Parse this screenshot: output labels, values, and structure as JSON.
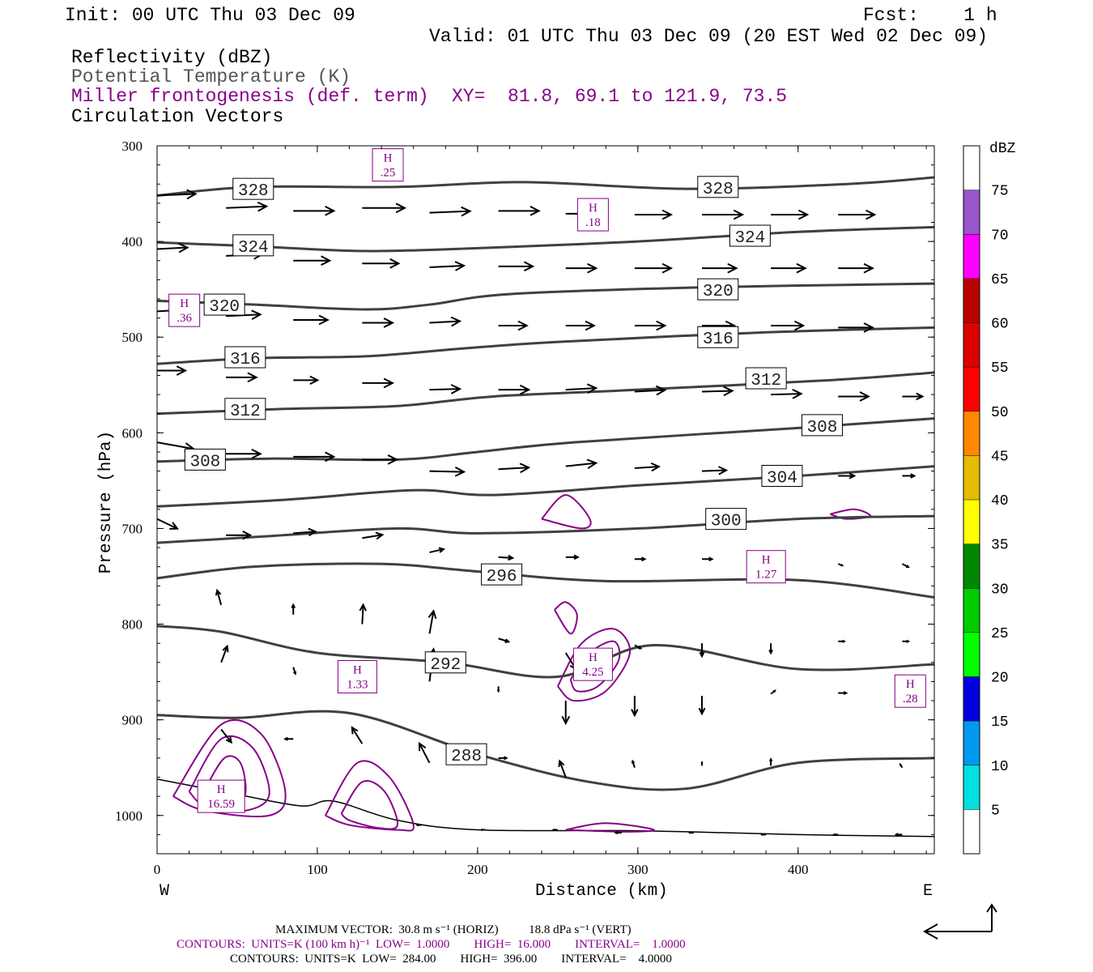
{
  "header": {
    "init": "Init: 00 UTC Thu 03 Dec 09",
    "fcst": "Fcst:    1 h",
    "valid": "Valid: 01 UTC Thu 03 Dec 09 (20 EST Wed 02 Dec 09)"
  },
  "fields": {
    "reflectivity": "Reflectivity (dBZ)",
    "theta": "Potential Temperature (K)",
    "miller": "Miller frontogenesis (def. term)",
    "xy": "XY=  81.8, 69.1 to 121.9, 73.5",
    "vectors": "Circulation Vectors"
  },
  "colors": {
    "theta_contour": "#404040",
    "frontogenesis": "#880088",
    "vector": "#000000"
  },
  "chart_data": {
    "type": "line",
    "xlabel": "Distance (km)",
    "ylabel": "Pressure (hPa)",
    "xlim": [
      0,
      485
    ],
    "ylim": [
      1040,
      300
    ],
    "x_ticks": [
      "0",
      "100",
      "200",
      "300",
      "400"
    ],
    "y_ticks": [
      "300",
      "400",
      "500",
      "600",
      "700",
      "800",
      "900",
      "1000"
    ],
    "x_left_label": "W",
    "x_right_label": "E",
    "colorbar": {
      "unit": "dBZ",
      "levels": [
        "5",
        "10",
        "15",
        "20",
        "25",
        "30",
        "35",
        "40",
        "45",
        "50",
        "55",
        "60",
        "65",
        "70",
        "75"
      ],
      "colors": [
        "#ffffff",
        "#00e0e0",
        "#0099ee",
        "#0000dd",
        "#00ff00",
        "#00cc00",
        "#008800",
        "#ffff00",
        "#e6bb00",
        "#ff8800",
        "#ff0000",
        "#dd0000",
        "#bb0000",
        "#ff00ff",
        "#9955cc",
        "#ffffff"
      ]
    },
    "series": [
      {
        "name": "328",
        "x": [
          0,
          60,
          150,
          230,
          330,
          430,
          485
        ],
        "y": [
          352,
          343,
          343,
          338,
          345,
          340,
          333
        ]
      },
      {
        "name": "324",
        "x": [
          0,
          60,
          130,
          200,
          300,
          400,
          485
        ],
        "y": [
          401,
          405,
          410,
          407,
          400,
          390,
          385
        ]
      },
      {
        "name": "320",
        "x": [
          0,
          60,
          130,
          170,
          220,
          340,
          485
        ],
        "y": [
          462,
          466,
          471,
          466,
          455,
          448,
          444
        ]
      },
      {
        "name": "316",
        "x": [
          0,
          60,
          130,
          190,
          250,
          380,
          485
        ],
        "y": [
          528,
          522,
          520,
          512,
          505,
          495,
          490
        ]
      },
      {
        "name": "312",
        "x": [
          0,
          80,
          150,
          210,
          300,
          420,
          485
        ],
        "y": [
          580,
          575,
          572,
          562,
          555,
          545,
          537
        ]
      },
      {
        "name": "308",
        "x": [
          0,
          70,
          150,
          200,
          260,
          400,
          485
        ],
        "y": [
          630,
          627,
          628,
          620,
          610,
          595,
          585
        ]
      },
      {
        "name": "304",
        "x": [
          0,
          80,
          160,
          210,
          300,
          400,
          485
        ],
        "y": [
          677,
          670,
          660,
          665,
          655,
          645,
          635
        ]
      },
      {
        "name": "300",
        "x": [
          0,
          70,
          150,
          200,
          300,
          400,
          485
        ],
        "y": [
          715,
          708,
          700,
          705,
          700,
          690,
          687
        ]
      },
      {
        "name": "296",
        "x": [
          0,
          60,
          140,
          200,
          280,
          400,
          485
        ],
        "y": [
          752,
          740,
          737,
          745,
          755,
          754,
          772
        ]
      },
      {
        "name": "292",
        "x": [
          0,
          40,
          100,
          180,
          250,
          310,
          400,
          485
        ],
        "y": [
          802,
          808,
          830,
          840,
          855,
          822,
          847,
          842
        ]
      },
      {
        "name": "288",
        "x": [
          0,
          50,
          120,
          200,
          270,
          330,
          400,
          485
        ],
        "y": [
          895,
          898,
          893,
          936,
          965,
          972,
          945,
          940
        ]
      }
    ],
    "contour_labels": [
      {
        "text": "328",
        "x": 60,
        "y": 345
      },
      {
        "text": "328",
        "x": 350,
        "y": 343
      },
      {
        "text": "324",
        "x": 60,
        "y": 404
      },
      {
        "text": "324",
        "x": 370,
        "y": 394
      },
      {
        "text": "320",
        "x": 42,
        "y": 466
      },
      {
        "text": "320",
        "x": 350,
        "y": 450
      },
      {
        "text": "316",
        "x": 55,
        "y": 521
      },
      {
        "text": "316",
        "x": 350,
        "y": 500
      },
      {
        "text": "312",
        "x": 55,
        "y": 575
      },
      {
        "text": "312",
        "x": 380,
        "y": 543
      },
      {
        "text": "308",
        "x": 30,
        "y": 628
      },
      {
        "text": "308",
        "x": 415,
        "y": 592
      },
      {
        "text": "304",
        "x": 390,
        "y": 645
      },
      {
        "text": "300",
        "x": 355,
        "y": 690
      },
      {
        "text": "296",
        "x": 215,
        "y": 748
      },
      {
        "text": "292",
        "x": 180,
        "y": 840
      },
      {
        "text": "288",
        "x": 193,
        "y": 936
      }
    ],
    "maxima": [
      {
        "label": "H",
        "value": ".25",
        "x": 144,
        "y": 320
      },
      {
        "label": "H",
        "value": ".18",
        "x": 272,
        "y": 372
      },
      {
        "label": "H",
        "value": ".36",
        "x": 17,
        "y": 472
      },
      {
        "label": "H",
        "value": "1.27",
        "x": 380,
        "y": 740
      },
      {
        "label": "H",
        "value": "1.33",
        "x": 125,
        "y": 855
      },
      {
        "label": "H",
        "value": "4.25",
        "x": 272,
        "y": 842
      },
      {
        "label": "H",
        "value": ".28",
        "x": 470,
        "y": 870
      },
      {
        "label": "H",
        "value": "16.59",
        "x": 40,
        "y": 980
      }
    ],
    "frontogenesis_contours": [
      {
        "x": [
          240,
          255,
          270,
          265,
          240
        ],
        "y": [
          690,
          665,
          690,
          700,
          690
        ]
      },
      {
        "x": [
          420,
          435,
          445,
          430,
          420
        ],
        "y": [
          685,
          680,
          687,
          690,
          685
        ]
      },
      {
        "x": [
          250,
          265,
          285,
          295,
          280,
          260,
          250
        ],
        "y": [
          865,
          820,
          805,
          830,
          870,
          880,
          865
        ]
      },
      {
        "x": [
          258,
          270,
          285,
          288,
          275,
          262,
          258
        ],
        "y": [
          858,
          830,
          818,
          838,
          865,
          870,
          858
        ]
      },
      {
        "x": [
          248,
          255,
          262,
          258,
          248
        ],
        "y": [
          785,
          777,
          790,
          810,
          785
        ]
      },
      {
        "x": [
          10,
          40,
          65,
          80,
          70,
          30,
          10
        ],
        "y": [
          980,
          905,
          915,
          975,
          1000,
          995,
          980
        ]
      },
      {
        "x": [
          20,
          40,
          60,
          70,
          55,
          30,
          20
        ],
        "y": [
          975,
          920,
          930,
          978,
          995,
          990,
          975
        ]
      },
      {
        "x": [
          30,
          42,
          52,
          55,
          45,
          35,
          30
        ],
        "y": [
          972,
          940,
          945,
          978,
          990,
          985,
          972
        ]
      },
      {
        "x": [
          105,
          125,
          145,
          160,
          150,
          120,
          105
        ],
        "y": [
          1000,
          945,
          960,
          1010,
          1015,
          1010,
          1000
        ]
      },
      {
        "x": [
          115,
          128,
          142,
          150,
          138,
          120,
          115
        ],
        "y": [
          998,
          965,
          975,
          1010,
          1013,
          1005,
          998
        ]
      },
      {
        "x": [
          255,
          280,
          310,
          290,
          255
        ],
        "y": [
          1015,
          1008,
          1015,
          1017,
          1015
        ]
      }
    ],
    "terrain": {
      "x": [
        0,
        50,
        90,
        110,
        150,
        200,
        300,
        400,
        485
      ],
      "y": [
        962,
        978,
        990,
        985,
        1005,
        1015,
        1016,
        1020,
        1022
      ]
    },
    "vectors": [
      {
        "x": 0,
        "y": 352,
        "u": 38,
        "w": 0.1
      },
      {
        "x": 43,
        "y": 365,
        "u": 40,
        "w": 0.1
      },
      {
        "x": 85,
        "y": 368,
        "u": 40,
        "w": 0
      },
      {
        "x": 128,
        "y": 365,
        "u": 42,
        "w": 0
      },
      {
        "x": 170,
        "y": 370,
        "u": 40,
        "w": 0.1
      },
      {
        "x": 213,
        "y": 368,
        "u": 40,
        "w": 0
      },
      {
        "x": 255,
        "y": 371,
        "u": 40,
        "w": 0
      },
      {
        "x": 298,
        "y": 372,
        "u": 36,
        "w": 0
      },
      {
        "x": 340,
        "y": 372,
        "u": 40,
        "w": 0
      },
      {
        "x": 383,
        "y": 372,
        "u": 36,
        "w": 0
      },
      {
        "x": 425,
        "y": 372,
        "u": 36,
        "w": 0
      },
      {
        "x": 0,
        "y": 408,
        "u": 30,
        "w": 0.1
      },
      {
        "x": 43,
        "y": 415,
        "u": 36,
        "w": 0.1
      },
      {
        "x": 85,
        "y": 420,
        "u": 36,
        "w": 0
      },
      {
        "x": 128,
        "y": 423,
        "u": 36,
        "w": 0
      },
      {
        "x": 170,
        "y": 427,
        "u": 34,
        "w": 0.1
      },
      {
        "x": 213,
        "y": 426,
        "u": 34,
        "w": 0
      },
      {
        "x": 255,
        "y": 428,
        "u": 30,
        "w": 0
      },
      {
        "x": 298,
        "y": 428,
        "u": 36,
        "w": 0
      },
      {
        "x": 340,
        "y": 428,
        "u": 34,
        "w": 0
      },
      {
        "x": 383,
        "y": 428,
        "u": 34,
        "w": 0
      },
      {
        "x": 425,
        "y": 428,
        "u": 34,
        "w": 0
      },
      {
        "x": 0,
        "y": 473,
        "u": 28,
        "w": 0.1
      },
      {
        "x": 43,
        "y": 478,
        "u": 34,
        "w": 0.1
      },
      {
        "x": 85,
        "y": 482,
        "u": 34,
        "w": 0
      },
      {
        "x": 128,
        "y": 485,
        "u": 30,
        "w": 0
      },
      {
        "x": 170,
        "y": 485,
        "u": 30,
        "w": 0.1
      },
      {
        "x": 213,
        "y": 488,
        "u": 28,
        "w": 0
      },
      {
        "x": 255,
        "y": 488,
        "u": 28,
        "w": 0
      },
      {
        "x": 298,
        "y": 488,
        "u": 30,
        "w": 0
      },
      {
        "x": 340,
        "y": 488,
        "u": 32,
        "w": 0
      },
      {
        "x": 383,
        "y": 488,
        "u": 32,
        "w": 0
      },
      {
        "x": 425,
        "y": 490,
        "u": 34,
        "w": 0
      },
      {
        "x": 0,
        "y": 535,
        "u": 28,
        "w": 0
      },
      {
        "x": 43,
        "y": 542,
        "u": 30,
        "w": 0
      },
      {
        "x": 85,
        "y": 545,
        "u": 24,
        "w": 0
      },
      {
        "x": 128,
        "y": 548,
        "u": 30,
        "w": 0
      },
      {
        "x": 170,
        "y": 555,
        "u": 30,
        "w": 0.05
      },
      {
        "x": 213,
        "y": 555,
        "u": 30,
        "w": 0
      },
      {
        "x": 255,
        "y": 555,
        "u": 30,
        "w": 0.1
      },
      {
        "x": 298,
        "y": 557,
        "u": 30,
        "w": 0.1
      },
      {
        "x": 340,
        "y": 557,
        "u": 30,
        "w": 0.05
      },
      {
        "x": 383,
        "y": 560,
        "u": 30,
        "w": 0.05
      },
      {
        "x": 425,
        "y": 562,
        "u": 30,
        "w": 0
      },
      {
        "x": 465,
        "y": 562,
        "u": 20,
        "w": 0
      },
      {
        "x": 0,
        "y": 610,
        "u": 36,
        "w": -0.4
      },
      {
        "x": 43,
        "y": 622,
        "u": 34,
        "w": 0
      },
      {
        "x": 85,
        "y": 625,
        "u": 40,
        "w": 0
      },
      {
        "x": 128,
        "y": 628,
        "u": 34,
        "w": 0
      },
      {
        "x": 170,
        "y": 640,
        "u": 34,
        "w": -0.05
      },
      {
        "x": 213,
        "y": 638,
        "u": 30,
        "w": 0.1
      },
      {
        "x": 255,
        "y": 635,
        "u": 30,
        "w": 0.2
      },
      {
        "x": 298,
        "y": 637,
        "u": 24,
        "w": 0.1
      },
      {
        "x": 340,
        "y": 640,
        "u": 24,
        "w": 0.05
      },
      {
        "x": 383,
        "y": 643,
        "u": 24,
        "w": 0
      },
      {
        "x": 425,
        "y": 645,
        "u": 16,
        "w": 0
      },
      {
        "x": 465,
        "y": 645,
        "u": 12,
        "w": 0
      },
      {
        "x": 0,
        "y": 690,
        "u": 20,
        "w": -0.6
      },
      {
        "x": 43,
        "y": 707,
        "u": 24,
        "w": 0
      },
      {
        "x": 85,
        "y": 705,
        "u": 22,
        "w": 0.1
      },
      {
        "x": 128,
        "y": 710,
        "u": 20,
        "w": 0.2
      },
      {
        "x": 170,
        "y": 725,
        "u": 14,
        "w": 0.2
      },
      {
        "x": 213,
        "y": 730,
        "u": 14,
        "w": -0.05
      },
      {
        "x": 255,
        "y": 730,
        "u": 12,
        "w": 0
      },
      {
        "x": 298,
        "y": 732,
        "u": 10,
        "w": 0
      },
      {
        "x": 340,
        "y": 732,
        "u": 10,
        "w": 0
      },
      {
        "x": 383,
        "y": 735,
        "u": 8,
        "w": 0
      },
      {
        "x": 425,
        "y": 737,
        "u": 4,
        "w": -0.1
      },
      {
        "x": 465,
        "y": 737,
        "u": 6,
        "w": -0.2
      },
      {
        "x": 40,
        "y": 780,
        "u": -4,
        "w": 0.9
      },
      {
        "x": 85,
        "y": 790,
        "u": 0,
        "w": 0.6
      },
      {
        "x": 128,
        "y": 800,
        "u": 1,
        "w": 1.2
      },
      {
        "x": 170,
        "y": 810,
        "u": 4,
        "w": 1.4
      },
      {
        "x": 213,
        "y": 815,
        "u": 10,
        "w": -0.2
      },
      {
        "x": 255,
        "y": 830,
        "u": 10,
        "w": -1.0
      },
      {
        "x": 298,
        "y": 822,
        "u": 6,
        "w": -0.2
      },
      {
        "x": 340,
        "y": 820,
        "u": 0,
        "w": -0.8
      },
      {
        "x": 383,
        "y": 820,
        "u": 0,
        "w": -0.6
      },
      {
        "x": 425,
        "y": 818,
        "u": 6,
        "w": 0
      },
      {
        "x": 465,
        "y": 818,
        "u": 6,
        "w": 0
      },
      {
        "x": 40,
        "y": 840,
        "u": 6,
        "w": 1.0
      },
      {
        "x": 85,
        "y": 845,
        "u": 2,
        "w": -0.4
      },
      {
        "x": 170,
        "y": 860,
        "u": 4,
        "w": 2.0
      },
      {
        "x": 213,
        "y": 865,
        "u": 0,
        "w": -0.3
      },
      {
        "x": 255,
        "y": 880,
        "u": 0,
        "w": -1.4
      },
      {
        "x": 298,
        "y": 875,
        "u": 0,
        "w": -1.2
      },
      {
        "x": 340,
        "y": 875,
        "u": 0,
        "w": -1.1
      },
      {
        "x": 383,
        "y": 873,
        "u": 4,
        "w": 0.2
      },
      {
        "x": 425,
        "y": 872,
        "u": 8,
        "w": 0
      },
      {
        "x": 465,
        "y": 872,
        "u": 10,
        "w": 0
      },
      {
        "x": 40,
        "y": 910,
        "u": 10,
        "w": -0.8
      },
      {
        "x": 85,
        "y": 920,
        "u": -8,
        "w": 0
      },
      {
        "x": 128,
        "y": 925,
        "u": -10,
        "w": 1.0
      },
      {
        "x": 170,
        "y": 945,
        "u": -10,
        "w": 1.2
      },
      {
        "x": 213,
        "y": 940,
        "u": 8,
        "w": 0
      },
      {
        "x": 255,
        "y": 960,
        "u": -6,
        "w": 1.0
      },
      {
        "x": 298,
        "y": 950,
        "u": -2,
        "w": 0.4
      },
      {
        "x": 340,
        "y": 948,
        "u": 0,
        "w": 0.2
      },
      {
        "x": 383,
        "y": 948,
        "u": 0,
        "w": 0.4
      },
      {
        "x": 465,
        "y": 950,
        "u": -2,
        "w": 0.2
      },
      {
        "x": 165,
        "y": 1010,
        "u": -4,
        "w": 0
      },
      {
        "x": 205,
        "y": 1015,
        "u": -4,
        "w": 0
      },
      {
        "x": 250,
        "y": 1015,
        "u": -4,
        "w": 0
      },
      {
        "x": 290,
        "y": 1018,
        "u": -6,
        "w": 0
      },
      {
        "x": 335,
        "y": 1018,
        "u": -4,
        "w": 0
      },
      {
        "x": 380,
        "y": 1020,
        "u": -4,
        "w": 0
      },
      {
        "x": 425,
        "y": 1020,
        "u": -4,
        "w": 0
      },
      {
        "x": 465,
        "y": 1020,
        "u": -6,
        "w": 0
      }
    ]
  },
  "footer": {
    "maxvec": "MAXIMUM VECTOR:  30.8 m s⁻¹ (HORIZ)          18.8 dPa s⁻¹ (VERT)",
    "contours1": "CONTOURS:  UNITS=K (100 km h)⁻¹  LOW=  1.0000        HIGH=  16.000        INTERVAL=    1.0000",
    "contours2": "CONTOURS:  UNITS=K  LOW=  284.00        HIGH=  396.00        INTERVAL=    4.0000"
  }
}
